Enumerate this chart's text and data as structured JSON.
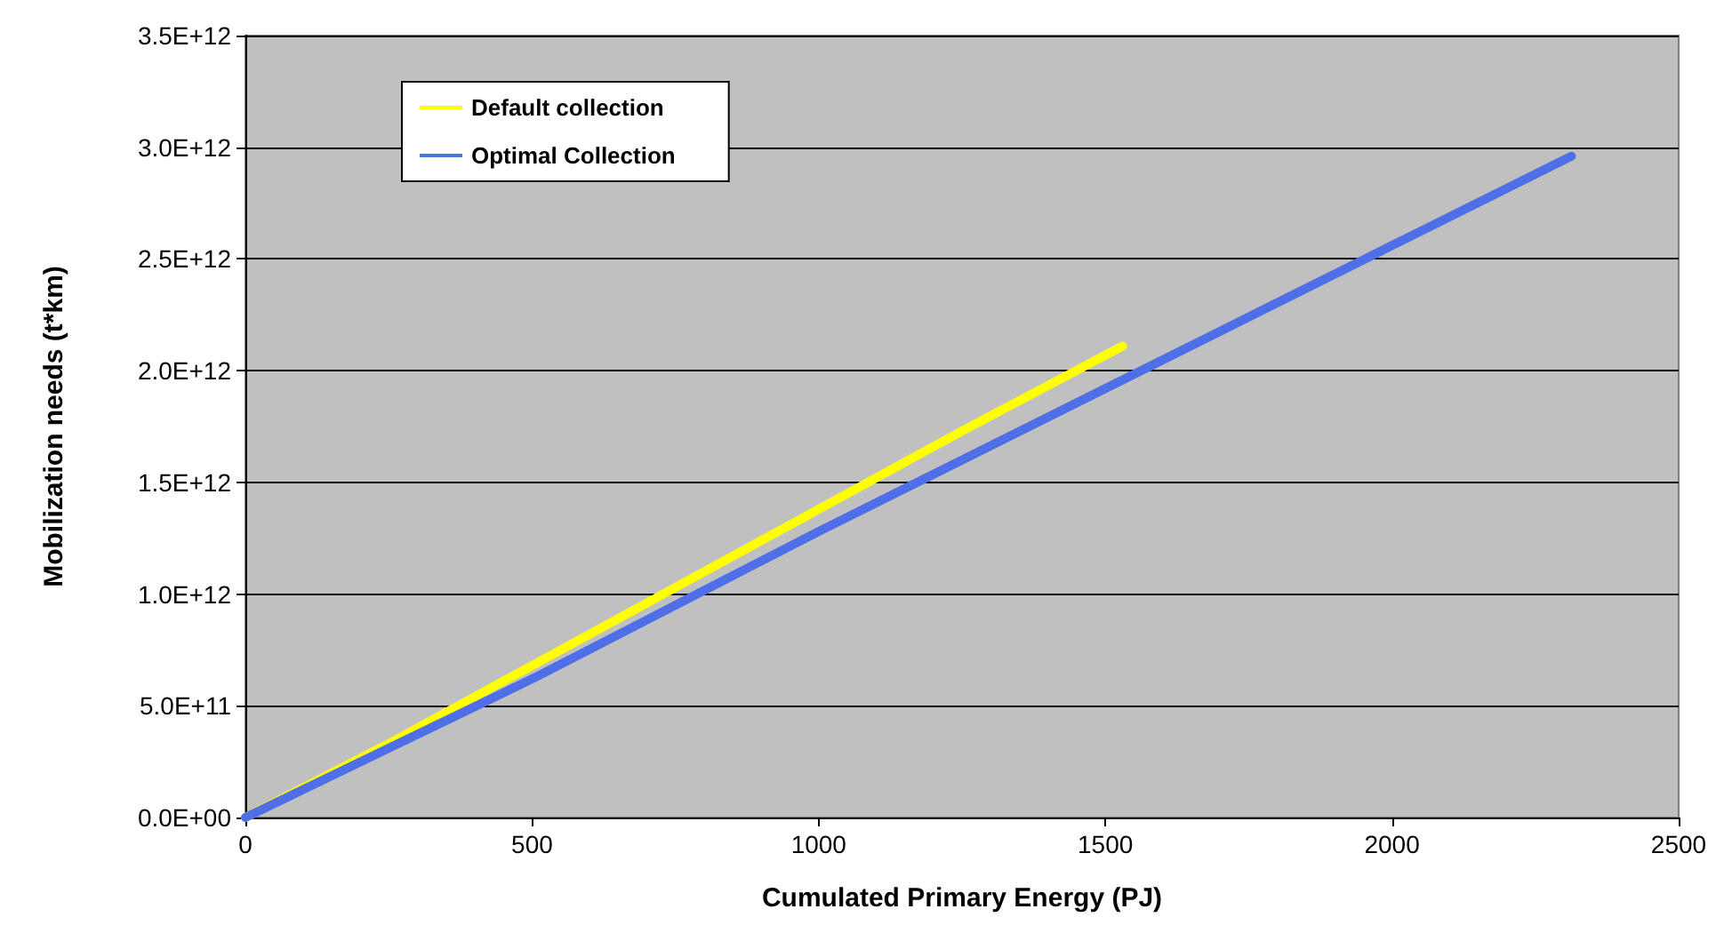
{
  "chart_data": {
    "type": "line",
    "xlabel": "Cumulated Primary Energy (PJ)",
    "ylabel": "Mobilization needs (t*km)",
    "series": [
      {
        "name": "Default collection",
        "color": "#ffff00",
        "x": [
          0,
          250,
          500,
          750,
          1000,
          1250,
          1530
        ],
        "values": [
          0,
          330000000000.0,
          680000000000.0,
          1030000000000.0,
          1380000000000.0,
          1730000000000.0,
          2110000000000.0
        ]
      },
      {
        "name": "Optimal Collection",
        "color": "#4f6fe8",
        "x": [
          0,
          250,
          500,
          750,
          1000,
          1250,
          1500,
          1750,
          2000,
          2313
        ],
        "values": [
          0,
          310000000000.0,
          620000000000.0,
          950000000000.0,
          1280000000000.0,
          1600000000000.0,
          1920000000000.0,
          2240000000000.0,
          2560000000000.0,
          2960000000000.0
        ]
      }
    ],
    "xlim": [
      0,
      2500
    ],
    "xticks": [
      0,
      500,
      1000,
      1500,
      2000,
      2500
    ],
    "ylim": [
      0,
      3500000000000.0
    ],
    "yticks": [
      {
        "value": 0,
        "label": "0.0E+00"
      },
      {
        "value": 500000000000.0,
        "label": "5.0E+11"
      },
      {
        "value": 1000000000000.0,
        "label": "1.0E+12"
      },
      {
        "value": 1500000000000.0,
        "label": "1.5E+12"
      },
      {
        "value": 2000000000000.0,
        "label": "2.0E+12"
      },
      {
        "value": 2500000000000.0,
        "label": "2.5E+12"
      },
      {
        "value": 3000000000000.0,
        "label": "3.0E+12"
      },
      {
        "value": 3500000000000.0,
        "label": "3.5E+12"
      }
    ],
    "grid": "y",
    "legend": "top left",
    "marker": "none",
    "line_style": "solid"
  }
}
